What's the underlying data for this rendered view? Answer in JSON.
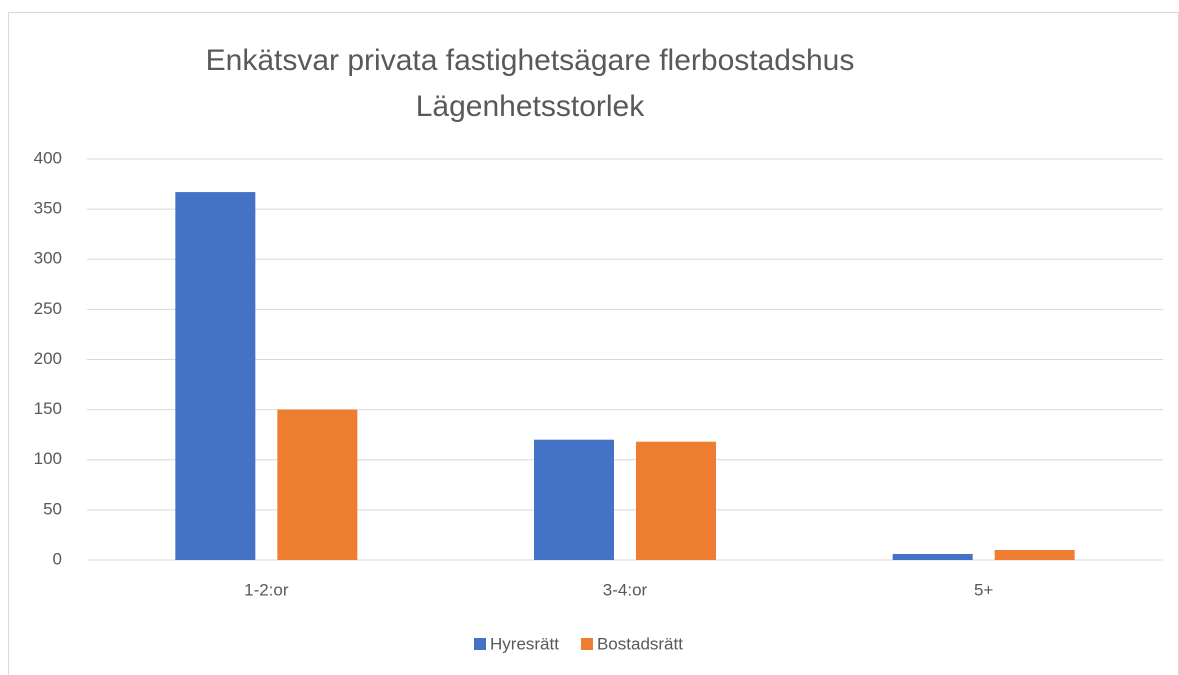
{
  "chart_data": {
    "type": "bar",
    "title": "Enkätsvar privata fastighetsägare flerbostadshus",
    "subtitle": "Lägenhetsstorlek",
    "categories": [
      "1-2:or",
      "3-4:or",
      "5+"
    ],
    "series": [
      {
        "name": "Hyresrätt",
        "color": "#4472c4",
        "values": [
          367,
          120,
          6
        ]
      },
      {
        "name": "Bostadsrätt",
        "color": "#ed7d31",
        "values": [
          150,
          118,
          10
        ]
      }
    ],
    "ylim": [
      0,
      400
    ],
    "yticks": [
      0,
      50,
      100,
      150,
      200,
      250,
      300,
      350,
      400
    ],
    "grid": true,
    "legend": "bottom"
  }
}
